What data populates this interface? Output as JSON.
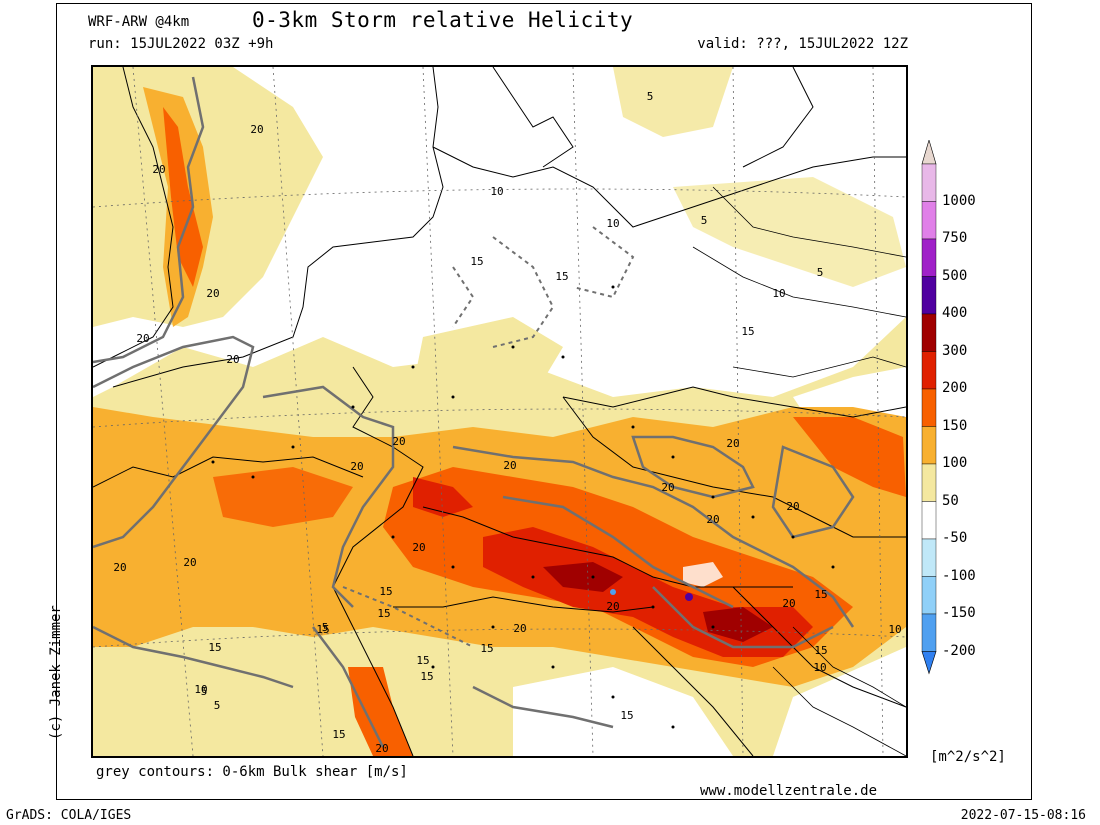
{
  "header": {
    "model": "WRF-ARW @4km",
    "title": "0-3km Storm relative Helicity",
    "run": "run: 15JUL2022 03Z +9h",
    "valid": "valid: ???, 15JUL2022 12Z"
  },
  "footer": {
    "footnote": "grey contours: 0-6km Bulk shear [m/s]",
    "website": "www.modellzentrale.de",
    "software": "GrADS: COLA/IGES",
    "timestamp": "2022-07-15-08:16",
    "copyright": "(c) Janek Zimmer"
  },
  "colorbar": {
    "unit": "[m^2/s^2]",
    "levels": [
      {
        "label": "1000",
        "color": "#e8b8e8"
      },
      {
        "label": "750",
        "color": "#e080e8"
      },
      {
        "label": "500",
        "color": "#a020c8"
      },
      {
        "label": "400",
        "color": "#5000a0"
      },
      {
        "label": "300",
        "color": "#a00000"
      },
      {
        "label": "200",
        "color": "#e02000"
      },
      {
        "label": "150",
        "color": "#f86000"
      },
      {
        "label": "100",
        "color": "#f8b030"
      },
      {
        "label": "50",
        "color": "#f4e8a0"
      },
      {
        "label": "-50",
        "color": "#ffffff"
      },
      {
        "label": "-100",
        "color": "#c0e8f8"
      },
      {
        "label": "-150",
        "color": "#90d0f8"
      },
      {
        "label": "-200",
        "color": "#50a0f0"
      }
    ],
    "top_cap_color": "#e8d8d0",
    "bottom_cap_color": "#3080f0"
  },
  "map": {
    "contour_color": "#707070",
    "shear_contour_labels": [
      "5",
      "5",
      "5",
      "5",
      "5",
      "5",
      "10",
      "10",
      "10",
      "10",
      "10",
      "10",
      "15",
      "15",
      "15",
      "15",
      "15",
      "15",
      "15",
      "15",
      "15",
      "15",
      "15",
      "15",
      "15",
      "15",
      "20",
      "20",
      "20",
      "20",
      "20",
      "20",
      "20",
      "20",
      "20",
      "20",
      "20",
      "20",
      "20",
      "20",
      "20",
      "20",
      "20",
      "20",
      "20"
    ]
  }
}
